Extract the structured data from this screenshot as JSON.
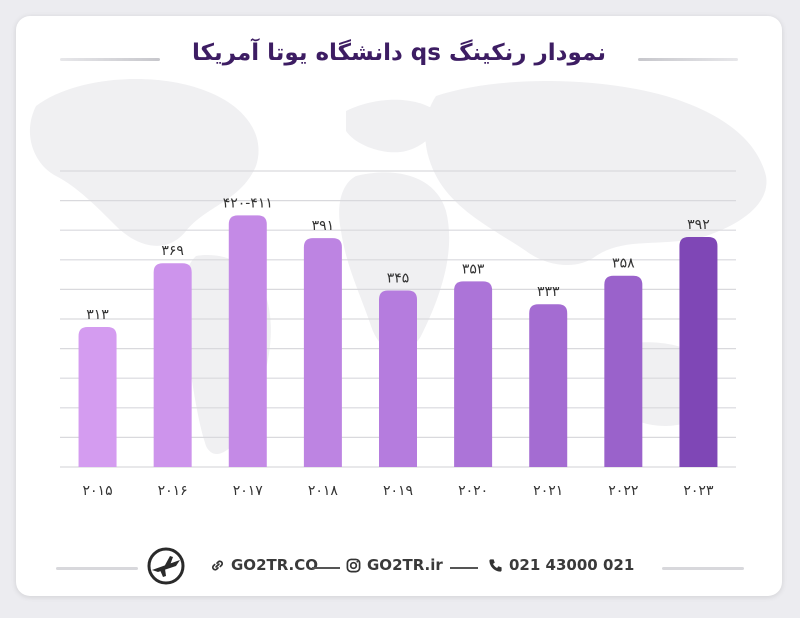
{
  "chart_data": {
    "type": "bar",
    "title": "نمودار رنکینگ qs دانشگاه یوتا آمریکا",
    "categories": [
      "۲۰۱۵",
      "۲۰۱۶",
      "۲۰۱۷",
      "۲۰۱۸",
      "۲۰۱۹",
      "۲۰۲۰",
      "۲۰۲۱",
      "۲۰۲۲",
      "۲۰۲۳"
    ],
    "values": [
      313,
      369,
      411,
      391,
      345,
      353,
      333,
      358,
      392
    ],
    "data_labels": [
      "۳۱۳",
      "۳۶۹",
      "۴۲۰-۴۱۱",
      "۳۹۱",
      "۳۴۵",
      "۳۵۳",
      "۳۳۳",
      "۳۵۸",
      "۳۹۲"
    ],
    "bar_colors": [
      "#d49cf0",
      "#cd94ec",
      "#c48ae6",
      "#bd84e2",
      "#b57cde",
      "#ac74d8",
      "#a46cd2",
      "#9a62cb",
      "#7f47b6"
    ],
    "grid": true,
    "ylim": [
      190,
      450
    ],
    "xlabel": "",
    "ylabel": ""
  },
  "footer": {
    "website": "GO2TR.CO",
    "instagram": "GO2TR.ir",
    "phone": "021 43000 021",
    "link_icon": "link-icon",
    "instagram_icon": "instagram-icon",
    "phone_icon": "phone-icon",
    "logo_icon": "airplane-logo-icon"
  },
  "colors": {
    "title": "#3d1d63",
    "grid": "#d9d9dd",
    "label": "#333333"
  }
}
